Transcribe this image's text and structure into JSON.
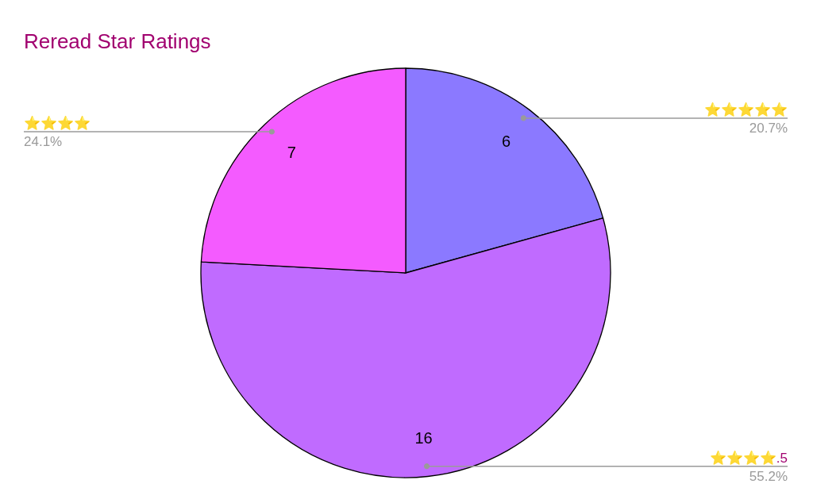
{
  "chart_data": {
    "type": "pie",
    "title": "Reread Star Ratings",
    "categories": [
      "⭐⭐⭐⭐⭐",
      "⭐⭐⭐⭐.5",
      "⭐⭐⭐⭐"
    ],
    "values": [
      6,
      16,
      7
    ],
    "colors": [
      "#8b79ff",
      "#c06bff",
      "#f45bff"
    ],
    "data_labels": true,
    "annotations": [
      "20.7%",
      "55.2%",
      "24.1%"
    ]
  }
}
